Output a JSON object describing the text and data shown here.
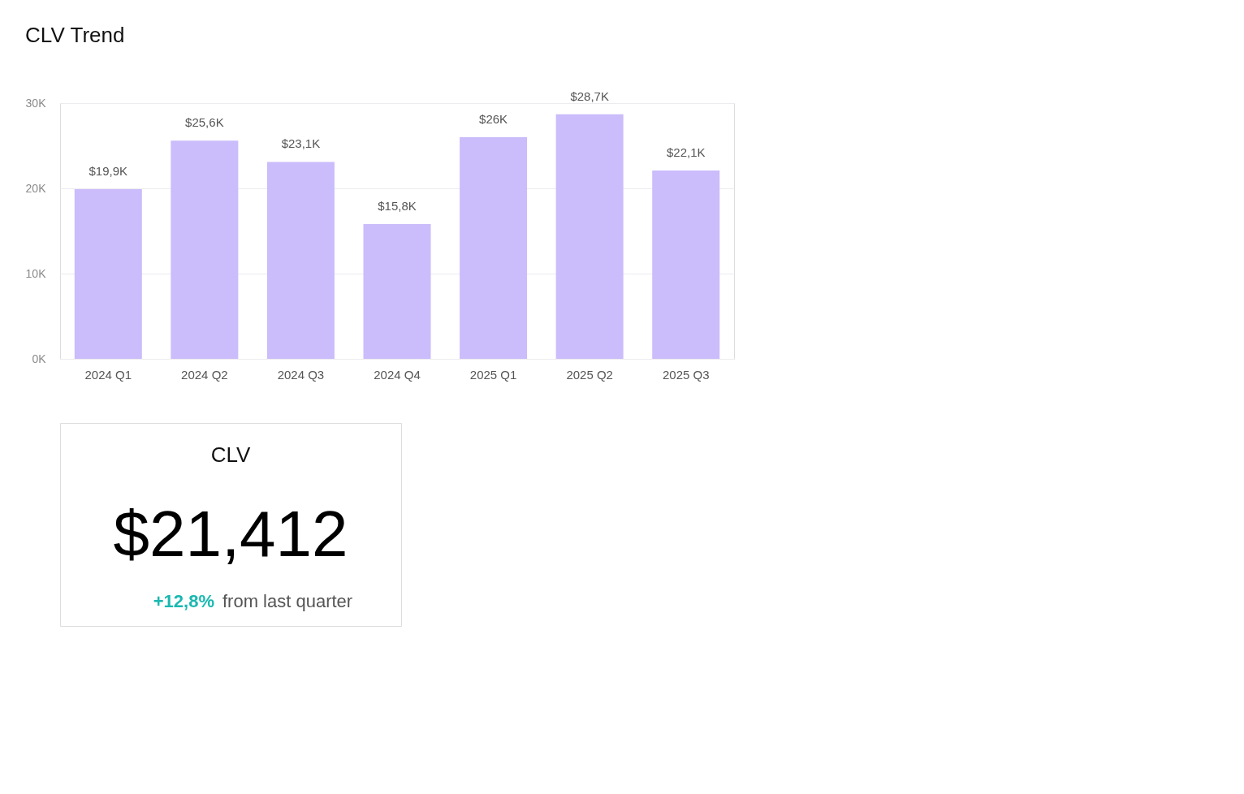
{
  "chart_data": [
    {
      "type": "bar",
      "title": "CLV Trend",
      "categories": [
        "2024 Q1",
        "2024 Q2",
        "2024 Q3",
        "2024 Q4",
        "2025 Q1",
        "2025 Q2",
        "2025 Q3"
      ],
      "values": [
        19900,
        25600,
        23100,
        15800,
        26000,
        28700,
        22100
      ],
      "value_labels": [
        "$19,9K",
        "$25,6K",
        "$23,1K",
        "$15,8K",
        "$26K",
        "$28,7K",
        "$22,1K"
      ],
      "color": "#cbbcfb",
      "ylim": [
        0,
        30000
      ],
      "yticks": [
        {
          "value": 0,
          "label": "0K"
        },
        {
          "value": 10000,
          "label": "10K"
        },
        {
          "value": 20000,
          "label": "20K"
        },
        {
          "value": 30000,
          "label": "30K"
        }
      ],
      "grid": "y"
    },
    {
      "type": "other",
      "title": "CLV",
      "annotations": [
        "$21,412",
        "+12,8%",
        "from last quarter"
      ]
    }
  ]
}
